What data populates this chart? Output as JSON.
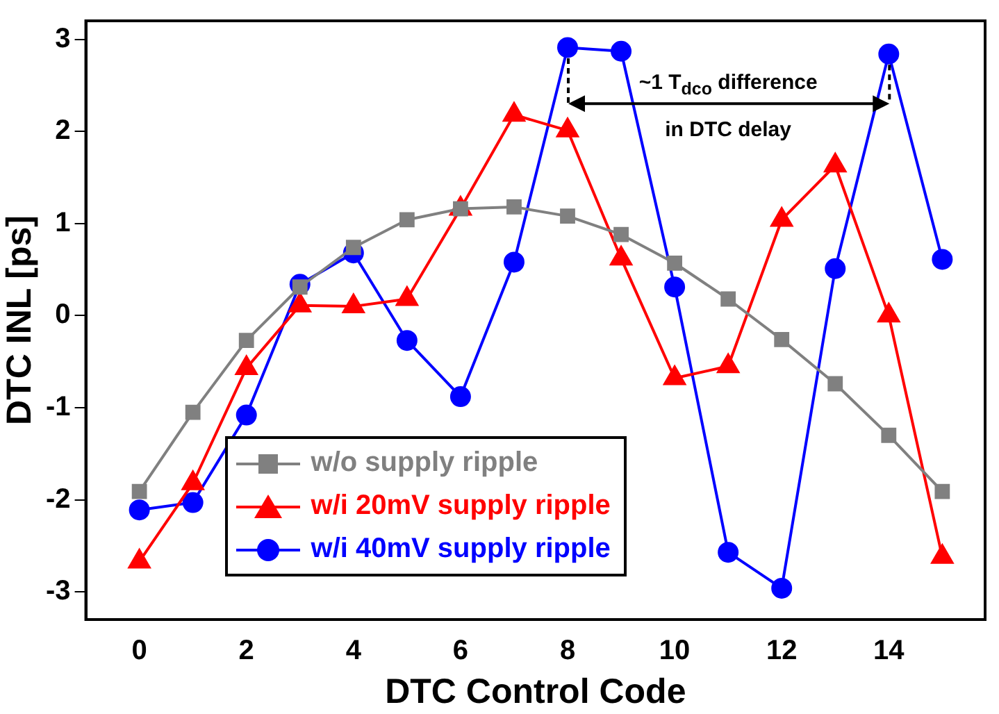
{
  "chart_data": {
    "type": "line",
    "xlabel": "DTC Control Code",
    "ylabel": "DTC INL [ps]",
    "x": [
      0,
      1,
      2,
      3,
      4,
      5,
      6,
      7,
      8,
      9,
      10,
      11,
      12,
      13,
      14,
      15
    ],
    "xlim": [
      -1,
      15.8
    ],
    "xticks": [
      0,
      2,
      4,
      6,
      8,
      10,
      12,
      14
    ],
    "ylim": [
      -3.3,
      3.2
    ],
    "yticks": [
      -3,
      -2,
      -1,
      0,
      1,
      2,
      3
    ],
    "grid": false,
    "legend": "bottom left",
    "line_style": "solid",
    "series": [
      {
        "name": "w/o supply ripple",
        "color": "#808080",
        "marker": "square",
        "values": [
          -1.91,
          -1.05,
          -0.27,
          0.31,
          0.74,
          1.04,
          1.16,
          1.18,
          1.08,
          0.88,
          0.57,
          0.18,
          -0.26,
          -0.74,
          -1.3,
          -1.91
        ]
      },
      {
        "name": "w/i 20mV supply ripple",
        "color": "#ff0000",
        "marker": "triangle",
        "values": [
          -2.67,
          -1.82,
          -0.57,
          0.11,
          0.1,
          0.18,
          1.16,
          2.18,
          2.01,
          0.62,
          -0.68,
          -0.55,
          1.04,
          1.63,
          0.0,
          -2.62
        ]
      },
      {
        "name": "w/i 40mV supply ripple",
        "color": "#0000ff",
        "marker": "circle",
        "values": [
          -2.11,
          -2.03,
          -1.08,
          0.34,
          0.68,
          -0.27,
          -0.88,
          0.58,
          2.91,
          2.87,
          0.31,
          -2.57,
          -2.96,
          0.51,
          2.84,
          0.61
        ]
      }
    ],
    "annotations": [
      "~1 T$_{dco}$ difference\nin DTC delay"
    ]
  }
}
